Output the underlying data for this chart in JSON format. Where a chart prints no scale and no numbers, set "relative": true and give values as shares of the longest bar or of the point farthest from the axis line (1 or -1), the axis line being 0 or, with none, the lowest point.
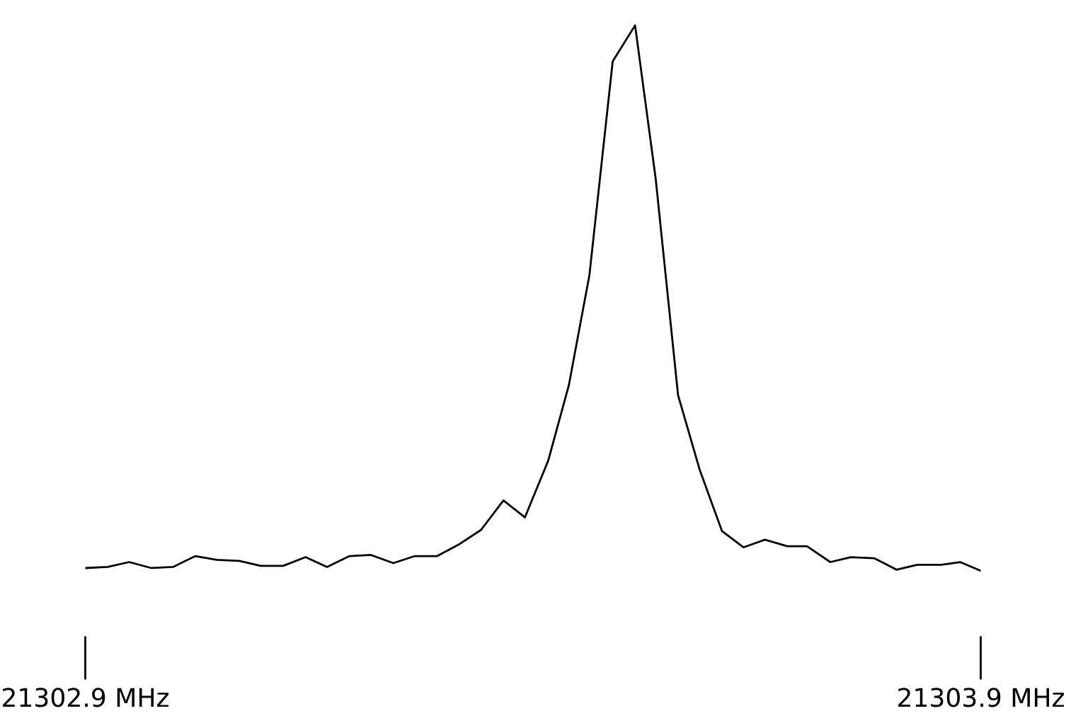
{
  "chart_data": {
    "type": "line",
    "relative": true,
    "x": [
      21302.9,
      21302.925,
      21302.949,
      21302.974,
      21302.998,
      21303.023,
      21303.047,
      21303.072,
      21303.096,
      21303.121,
      21303.146,
      21303.17,
      21303.195,
      21303.219,
      21303.244,
      21303.268,
      21303.293,
      21303.317,
      21303.342,
      21303.367,
      21303.391,
      21303.417,
      21303.44,
      21303.463,
      21303.489,
      21303.514,
      21303.537,
      21303.562,
      21303.586,
      21303.611,
      21303.635,
      21303.659,
      21303.684,
      21303.706,
      21303.732,
      21303.755,
      21303.781,
      21303.806,
      21303.829,
      21303.856,
      21303.877,
      21303.9
    ],
    "series": [
      {
        "color": "#000000",
        "values": [
          0.005,
          0.007,
          0.016,
          0.005,
          0.007,
          0.027,
          0.02,
          0.018,
          0.009,
          0.009,
          0.025,
          0.007,
          0.027,
          0.029,
          0.014,
          0.027,
          0.027,
          0.048,
          0.075,
          0.129,
          0.098,
          0.202,
          0.34,
          0.542,
          0.934,
          1,
          0.719,
          0.322,
          0.186,
          0.073,
          0.043,
          0.057,
          0.045,
          0.045,
          0.016,
          0.025,
          0.023,
          0.002,
          0.011,
          0.011,
          0.016,
          0
        ]
      }
    ],
    "xlim": [
      21302.9,
      21303.9
    ],
    "xticks": [
      {
        "value": 21302.9,
        "label": "21302.9 MHz"
      },
      {
        "value": 21303.9,
        "label": "21303.9 MHz"
      }
    ],
    "marker": "none",
    "line_style": "solid"
  }
}
